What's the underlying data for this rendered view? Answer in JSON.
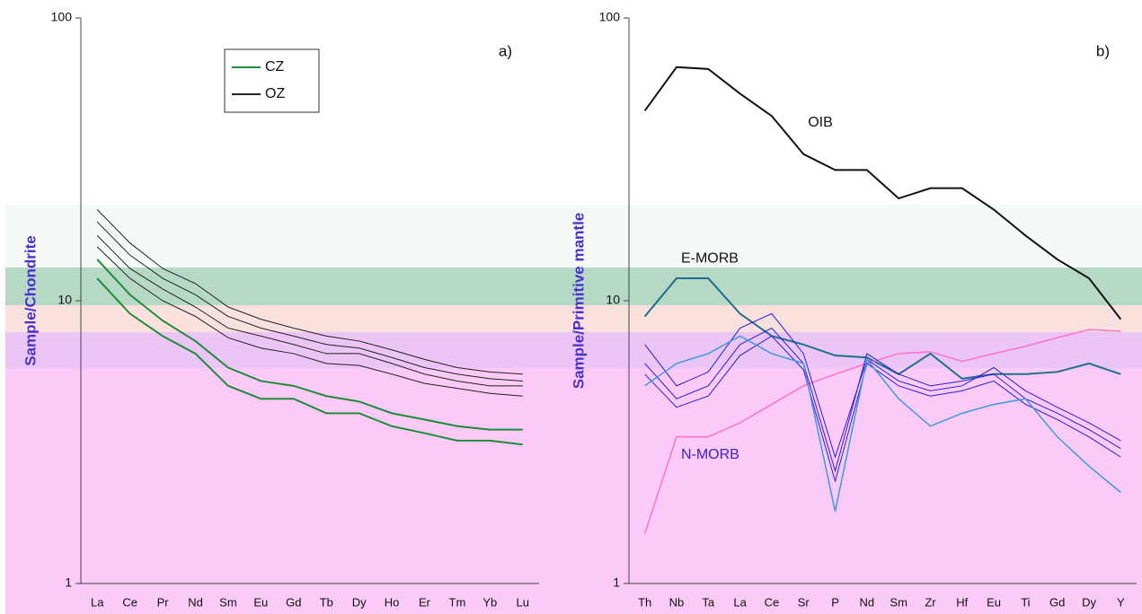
{
  "chart_data": [
    {
      "type": "line",
      "panel_label": "a)",
      "y_label": "Sample/Chondrite",
      "log_y": true,
      "ylim": [
        1,
        100
      ],
      "yticks": [
        1,
        10,
        100
      ],
      "legend": "upper left",
      "categories": [
        "La",
        "Ce",
        "Pr",
        "Nd",
        "Sm",
        "Eu",
        "Gd",
        "Tb",
        "Dy",
        "Ho",
        "Er",
        "Tm",
        "Yb",
        "Lu"
      ],
      "series": [
        {
          "name": "CZ",
          "color": "#1e8c3a",
          "width": 2,
          "lines": [
            [
              12,
              9,
              7.5,
              6.5,
              5,
              4.5,
              4.5,
              4,
              4,
              3.6,
              3.4,
              3.2,
              3.2,
              3.1
            ],
            [
              14,
              10.5,
              8.5,
              7.2,
              5.8,
              5.2,
              5,
              4.6,
              4.4,
              4,
              3.8,
              3.6,
              3.5,
              3.5
            ]
          ]
        },
        {
          "name": "OZ",
          "color": "#222222",
          "width": 1,
          "lines": [
            [
              17,
              13,
              11,
              9.5,
              8,
              7.5,
              7,
              6.5,
              6.5,
              6,
              5.5,
              5.2,
              5,
              5
            ],
            [
              19,
              14.5,
              12,
              10.5,
              8.8,
              8,
              7.5,
              7,
              6.8,
              6.3,
              5.8,
              5.5,
              5.3,
              5.2
            ],
            [
              15.5,
              12,
              10,
              8.8,
              7.4,
              6.8,
              6.5,
              6,
              5.9,
              5.5,
              5.1,
              4.9,
              4.7,
              4.6
            ],
            [
              21,
              16,
              13,
              11.5,
              9.5,
              8.6,
              8,
              7.5,
              7.2,
              6.7,
              6.2,
              5.8,
              5.6,
              5.5
            ]
          ]
        }
      ]
    },
    {
      "type": "line",
      "panel_label": "b)",
      "y_label": "Sample/Primitive mantle",
      "log_y": true,
      "ylim": [
        1,
        100
      ],
      "yticks": [
        1,
        10,
        100
      ],
      "categories": [
        "Th",
        "Nb",
        "Ta",
        "La",
        "Ce",
        "Sr",
        "P",
        "Nd",
        "Sm",
        "Zr",
        "Hf",
        "Eu",
        "Ti",
        "Gd",
        "Dy",
        "Y"
      ],
      "series": [
        {
          "name": "OIB",
          "color": "#111111",
          "width": 2,
          "lines": [
            [
              47,
              67,
              66,
              54,
              45,
              33,
              29,
              29,
              23,
              25,
              25,
              21,
              17,
              14,
              12,
              8.6
            ]
          ]
        },
        {
          "name": "E-MORB",
          "color": "#1b6f8f",
          "width": 2,
          "lines": [
            [
              8.8,
              12,
              12,
              9,
              7.5,
              7,
              6.4,
              6.3,
              5.5,
              6.5,
              5.3,
              5.5,
              5.5,
              5.6,
              6,
              5.5
            ]
          ]
        },
        {
          "name": "N-MORB",
          "color": "#ff6fd0",
          "width": 1.5,
          "lines": [
            [
              1.5,
              3.3,
              3.3,
              3.7,
              4.3,
              5,
              5.5,
              6,
              6.5,
              6.6,
              6.1,
              6.5,
              6.9,
              7.4,
              7.9,
              7.8
            ]
          ]
        },
        {
          "color": "#2a1fd8",
          "width": 1,
          "lines": [
            [
              6,
              4.5,
              5,
              7,
              8,
              6,
              2.5,
              6.5,
              5.5,
              5,
              5.2,
              5.5,
              4.5,
              4,
              3.5,
              3
            ],
            [
              7,
              5,
              5.6,
              8,
              9,
              6.5,
              2.8,
              6.2,
              5.2,
              4.8,
              5,
              5.8,
              4.8,
              4.2,
              3.7,
              3.2
            ],
            [
              5.5,
              4.2,
              4.6,
              6.4,
              7.5,
              5.7,
              2.3,
              6,
              5,
              4.6,
              4.8,
              5.2,
              4.3,
              3.8,
              3.3,
              2.8
            ]
          ]
        },
        {
          "color": "#3a9ae0",
          "width": 1.5,
          "lines": [
            [
              5,
              6,
              6.5,
              7.5,
              6.5,
              6,
              1.8,
              6.2,
              4.5,
              3.6,
              4,
              4.3,
              4.5,
              3.3,
              2.6,
              2.1
            ]
          ]
        }
      ]
    }
  ]
}
